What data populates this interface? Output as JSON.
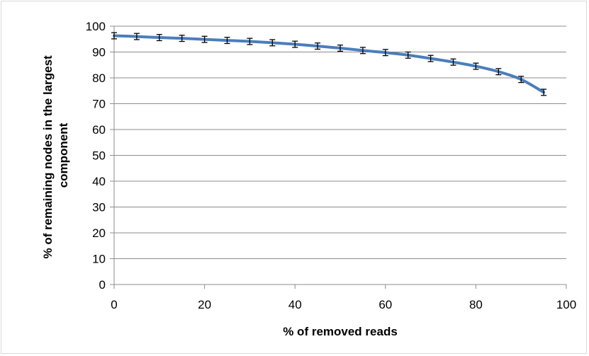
{
  "chart_data": {
    "type": "line",
    "title": "",
    "xlabel": "% of removed reads",
    "ylabel_lines": [
      "% of remaining nodes in the largest",
      "component"
    ],
    "xlim": [
      0,
      100
    ],
    "ylim": [
      0,
      100
    ],
    "x_ticks": [
      0,
      20,
      40,
      60,
      80,
      100
    ],
    "y_ticks": [
      0,
      10,
      20,
      30,
      40,
      50,
      60,
      70,
      80,
      90,
      100
    ],
    "grid": "horizontal",
    "legend": "none",
    "series": [
      {
        "color": "#4a7ebb",
        "x": [
          0,
          5,
          10,
          15,
          20,
          25,
          30,
          35,
          40,
          45,
          50,
          55,
          60,
          65,
          70,
          75,
          80,
          85,
          90,
          95
        ],
        "y": [
          96.3,
          96.0,
          95.6,
          95.3,
          94.9,
          94.5,
          94.1,
          93.6,
          93.0,
          92.3,
          91.5,
          90.6,
          89.8,
          88.8,
          87.5,
          86.1,
          84.5,
          82.4,
          79.4,
          74.4
        ],
        "error": [
          1.2,
          1.2,
          1.2,
          1.2,
          1.2,
          1.2,
          1.2,
          1.2,
          1.2,
          1.2,
          1.2,
          1.2,
          1.2,
          1.2,
          1.2,
          1.2,
          1.2,
          1.2,
          1.2,
          1.2
        ]
      }
    ]
  }
}
